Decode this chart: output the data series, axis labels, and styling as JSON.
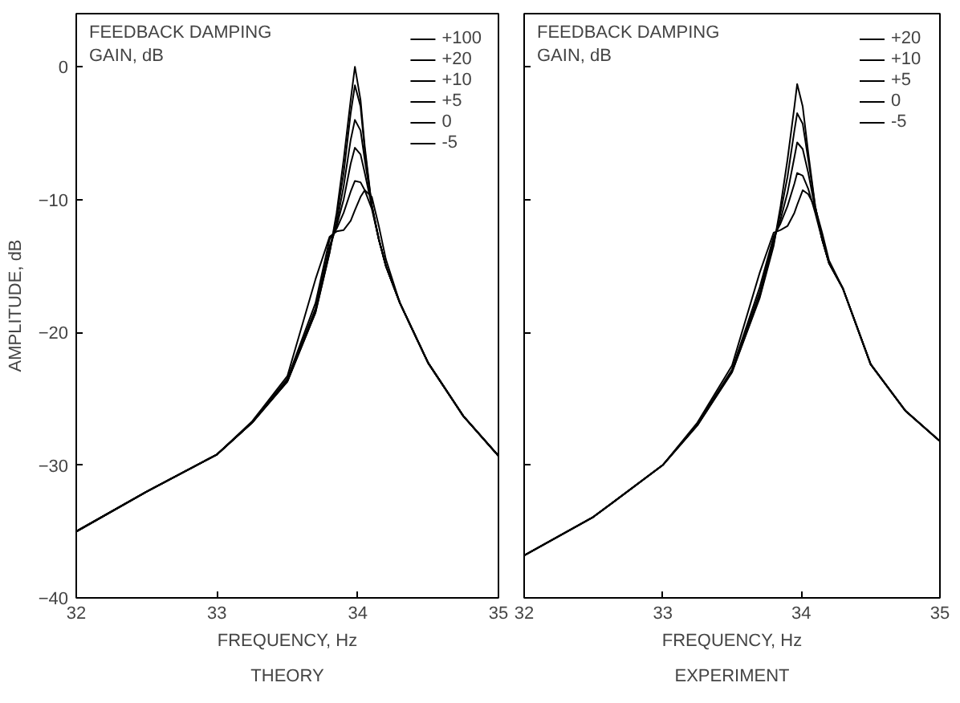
{
  "chart_data": [
    {
      "type": "line",
      "legend": "top right",
      "title": "THEORY",
      "xlabel": "FREQUENCY, Hz",
      "ylabel": "AMPLITUDE, dB",
      "legend_title": "FEEDBACK DAMPING\nGAIN, dB",
      "xlim": [
        32,
        35
      ],
      "ylim": [
        -40,
        4
      ],
      "xticks": [
        32,
        33,
        34,
        35
      ],
      "yticks": [
        -40,
        -30,
        -20,
        -10,
        0
      ],
      "x": [
        32,
        32.5,
        33,
        33.25,
        33.5,
        33.7,
        33.8,
        33.85,
        33.9,
        33.95,
        33.98,
        34.02,
        34.05,
        34.1,
        34.15,
        34.2,
        34.3,
        34.5,
        34.75,
        35
      ],
      "series": [
        {
          "name": "+100",
          "color": "#000000",
          "values": [
            -35,
            -32,
            -29.2,
            -26.8,
            -23.7,
            -18.5,
            -14,
            -11,
            -7,
            -2.5,
            0,
            -2.5,
            -6,
            -10.5,
            -13,
            -15,
            -17.8,
            -22.3,
            -26.3,
            -29.3
          ]
        },
        {
          "name": "+20",
          "color": "#000000",
          "values": [
            -35,
            -32,
            -29.2,
            -26.8,
            -23.7,
            -18.5,
            -14,
            -11.3,
            -8,
            -3.5,
            -1.4,
            -3,
            -6.3,
            -10.5,
            -13,
            -15,
            -17.8,
            -22.3,
            -26.3,
            -29.3
          ]
        },
        {
          "name": "+10",
          "color": "#000000",
          "values": [
            -35,
            -32,
            -29.2,
            -26.8,
            -23.7,
            -18.4,
            -13.8,
            -11.8,
            -9,
            -5.5,
            -4,
            -4.8,
            -7,
            -10.4,
            -13,
            -15,
            -17.8,
            -22.3,
            -26.3,
            -29.3
          ]
        },
        {
          "name": "+5",
          "color": "#000000",
          "values": [
            -35,
            -32,
            -29.2,
            -26.8,
            -23.6,
            -18.2,
            -13.5,
            -12,
            -10,
            -7.3,
            -6.1,
            -6.6,
            -8,
            -10.5,
            -13,
            -15,
            -17.8,
            -22.3,
            -26.3,
            -29.3
          ]
        },
        {
          "name": "0",
          "color": "#000000",
          "values": [
            -35,
            -32,
            -29.2,
            -26.8,
            -23.5,
            -17.8,
            -13,
            -12.2,
            -11,
            -9.4,
            -8.6,
            -8.7,
            -9.3,
            -10.7,
            -13,
            -15,
            -17.8,
            -22.3,
            -26.3,
            -29.3
          ]
        },
        {
          "name": "-5",
          "color": "#000000",
          "values": [
            -35,
            -32,
            -29.2,
            -26.7,
            -23.3,
            -16,
            -12.8,
            -12.4,
            -12.3,
            -11.6,
            -10.8,
            -9.8,
            -9.3,
            -9.8,
            -12,
            -14.5,
            -17.8,
            -22.3,
            -26.3,
            -29.3
          ]
        }
      ]
    },
    {
      "type": "line",
      "legend": "top right",
      "title": "EXPERIMENT",
      "xlabel": "FREQUENCY, Hz",
      "legend_title": "FEEDBACK DAMPING\nGAIN, dB",
      "xlim": [
        32,
        35
      ],
      "ylim": [
        -40,
        4
      ],
      "xticks": [
        32,
        33,
        34,
        35
      ],
      "yticks": [
        -40,
        -30,
        -20,
        -10,
        0
      ],
      "tick_labels": "x",
      "x": [
        32,
        32.5,
        33,
        33.25,
        33.5,
        33.7,
        33.8,
        33.85,
        33.9,
        33.95,
        33.97,
        34.01,
        34.05,
        34.1,
        34.15,
        34.2,
        34.3,
        34.5,
        34.75,
        35
      ],
      "series": [
        {
          "name": "+20",
          "color": "#000000",
          "values": [
            -36.8,
            -33.9,
            -30,
            -27,
            -23,
            -17.4,
            -13.5,
            -10.5,
            -7,
            -3,
            -1.3,
            -3,
            -6.5,
            -10.5,
            -13,
            -14.8,
            -16.7,
            -22.4,
            -25.9,
            -28.2
          ]
        },
        {
          "name": "+10",
          "color": "#000000",
          "values": [
            -36.8,
            -33.9,
            -30,
            -27,
            -23,
            -17.3,
            -13.3,
            -11,
            -8.3,
            -4.8,
            -3.5,
            -4.3,
            -7,
            -10.5,
            -13,
            -14.8,
            -16.7,
            -22.4,
            -25.9,
            -28.2
          ]
        },
        {
          "name": "+5",
          "color": "#000000",
          "values": [
            -36.8,
            -33.9,
            -30,
            -27,
            -22.9,
            -17,
            -13,
            -11.5,
            -9.5,
            -6.8,
            -5.7,
            -6.2,
            -8,
            -10.7,
            -13,
            -14.8,
            -16.7,
            -22.4,
            -25.9,
            -28.2
          ]
        },
        {
          "name": "0",
          "color": "#000000",
          "values": [
            -36.8,
            -33.9,
            -30,
            -26.9,
            -22.8,
            -16.6,
            -12.8,
            -11.8,
            -10.5,
            -8.8,
            -8,
            -8.2,
            -9.2,
            -11,
            -13,
            -14.8,
            -16.7,
            -22.4,
            -25.9,
            -28.2
          ]
        },
        {
          "name": "-5",
          "color": "#000000",
          "values": [
            -36.8,
            -33.9,
            -30,
            -26.8,
            -22.5,
            -15.5,
            -12.5,
            -12.3,
            -12,
            -11,
            -10.4,
            -9.3,
            -9.6,
            -10.6,
            -12.5,
            -14.6,
            -16.7,
            -22.4,
            -25.9,
            -28.2
          ]
        }
      ]
    }
  ]
}
